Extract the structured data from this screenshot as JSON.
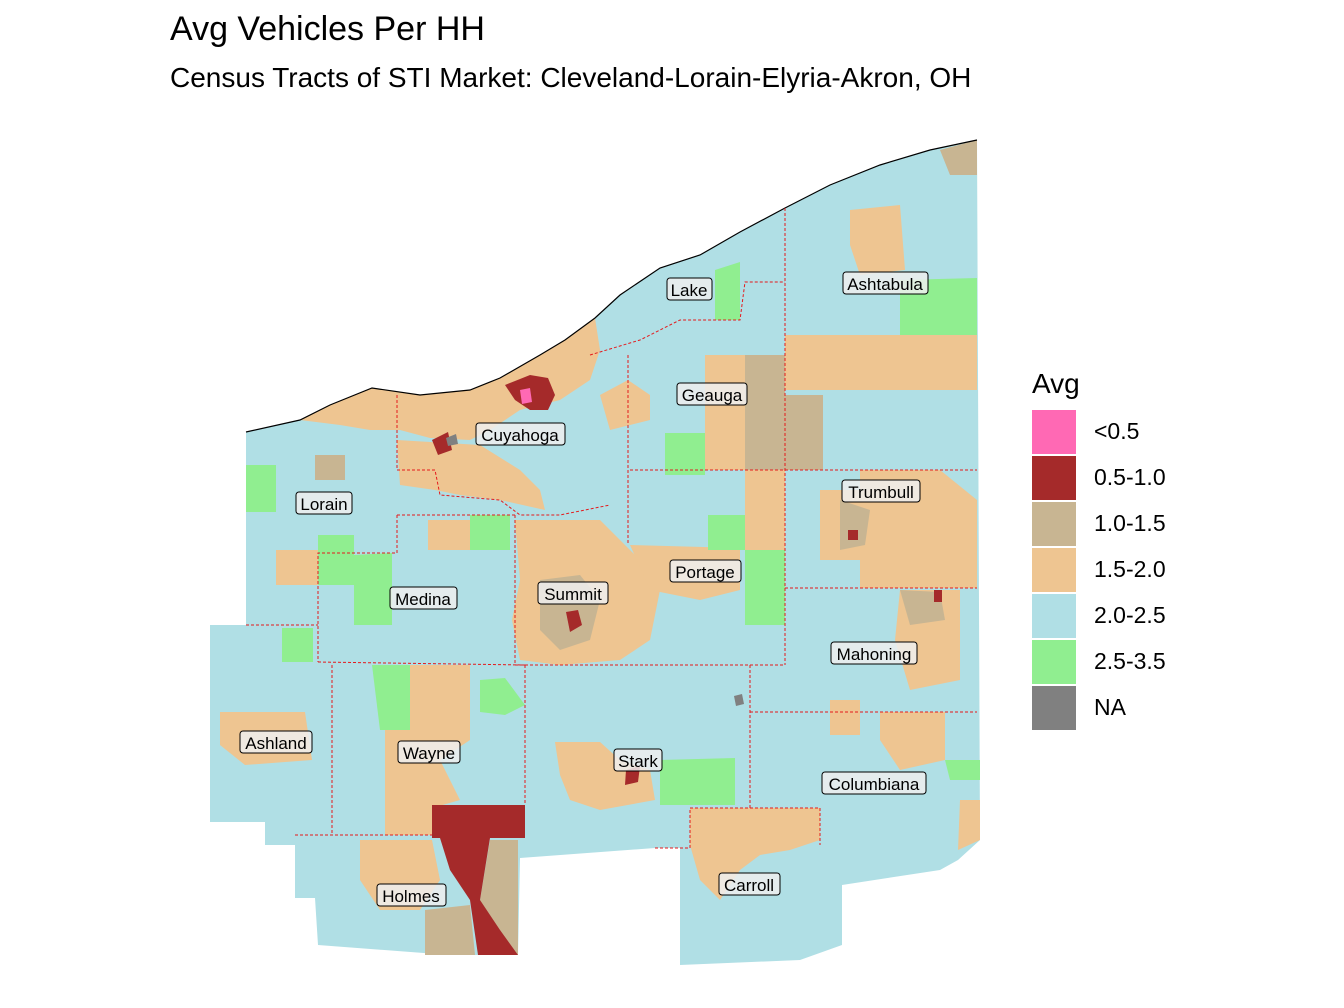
{
  "title": "Avg Vehicles Per HH",
  "subtitle": "Census Tracts of STI Market: Cleveland-Lorain-Elyria-Akron, OH",
  "legend": {
    "title": "Avg",
    "items": [
      {
        "label": "<0.5",
        "color": "#ff69b4"
      },
      {
        "label": "0.5-1.0",
        "color": "#a52a2a"
      },
      {
        "label": "1.0-1.5",
        "color": "#c8b592"
      },
      {
        "label": "1.5-2.0",
        "color": "#eec591"
      },
      {
        "label": "2.0-2.5",
        "color": "#b0dfe5"
      },
      {
        "label": "2.5-3.5",
        "color": "#90ee90"
      },
      {
        "label": "NA",
        "color": "#808080"
      }
    ]
  },
  "counties": {
    "lake": "Lake",
    "ashtabula": "Ashtabula",
    "geauga": "Geauga",
    "cuyahoga": "Cuyahoga",
    "lorain": "Lorain",
    "trumbull": "Trumbull",
    "portage": "Portage",
    "summit": "Summit",
    "medina": "Medina",
    "mahoning": "Mahoning",
    "ashland": "Ashland",
    "wayne": "Wayne",
    "stark": "Stark",
    "columbiana": "Columbiana",
    "carroll": "Carroll",
    "holmes": "Holmes"
  },
  "colors": {
    "boundary": "#e41a1c",
    "water_edge": "#000000"
  }
}
